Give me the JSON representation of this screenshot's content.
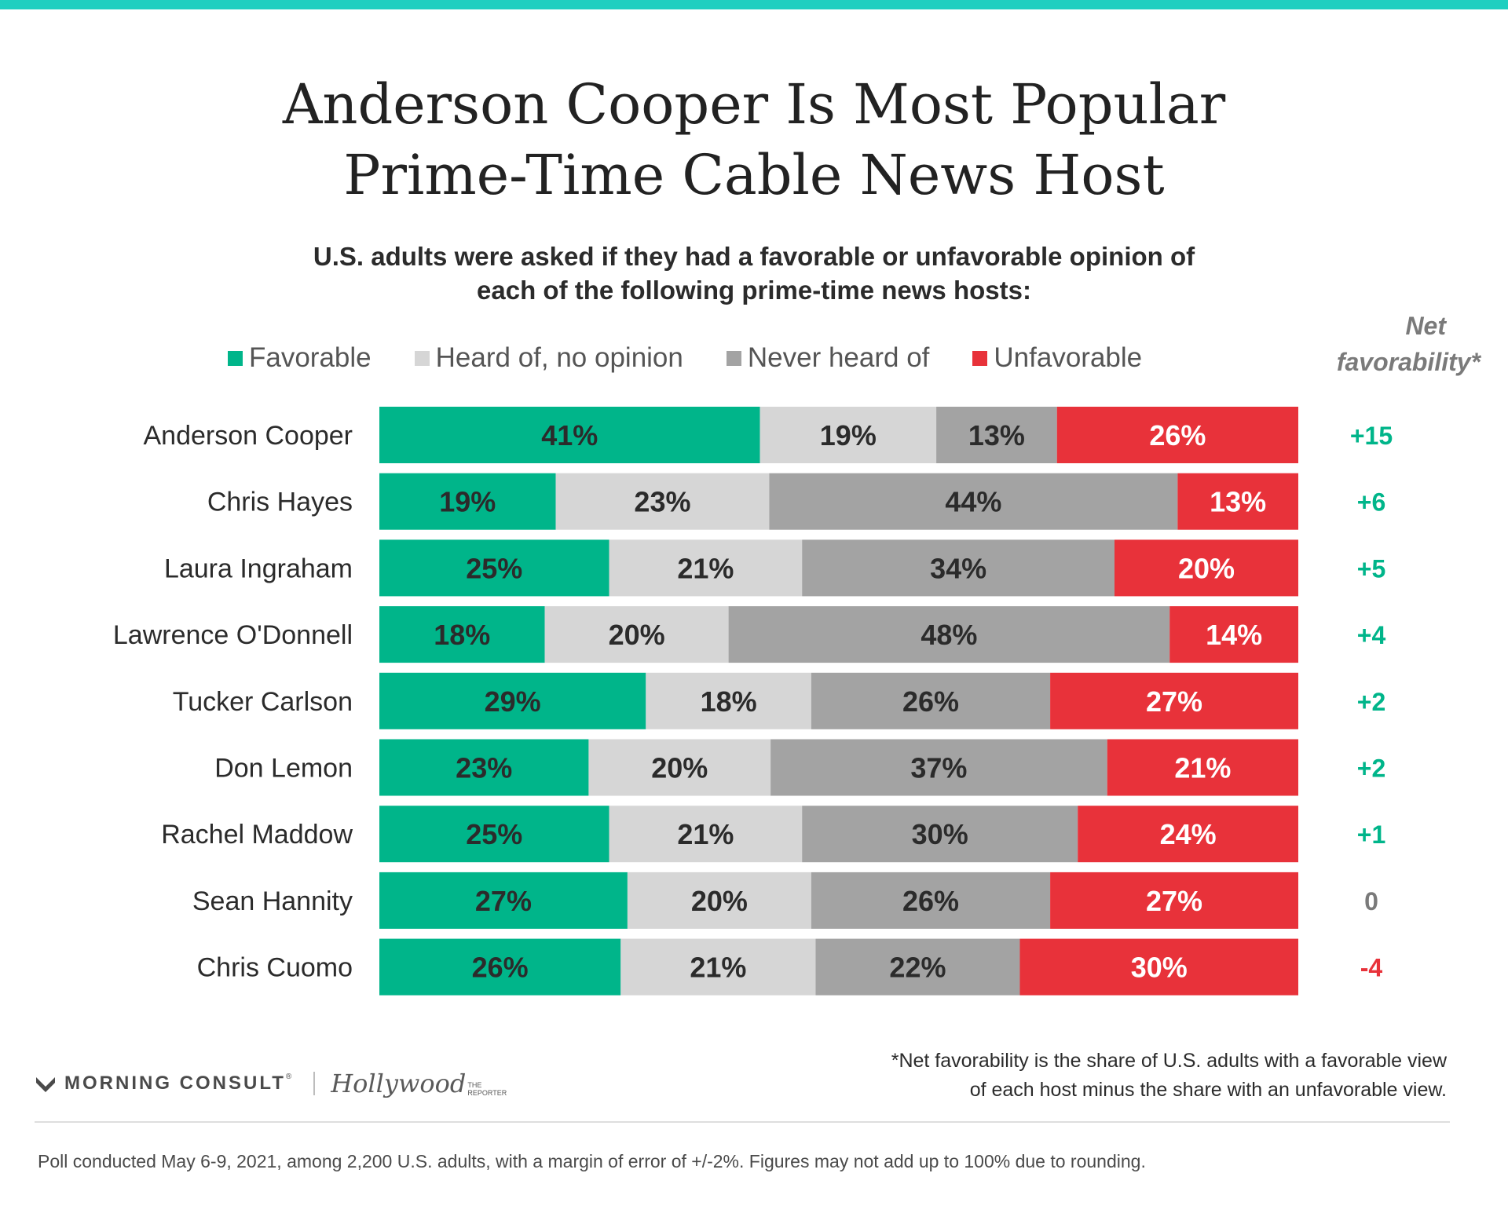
{
  "title_lines": [
    "Anderson Cooper Is Most Popular",
    "Prime-Time Cable News Host"
  ],
  "subtitle_lines": [
    "U.S. adults were asked if they had a favorable or unfavorable opinion of",
    "each of the following prime-time news hosts:"
  ],
  "net_header": [
    "Net",
    "favorability*"
  ],
  "colors": {
    "favorable": "#00b58a",
    "no_opinion": "#d6d6d6",
    "never_heard": "#a3a3a3",
    "unfavorable": "#e8323a",
    "net_positive": "#00b58a",
    "net_neutral": "#7a7a7a",
    "net_negative": "#e8323a"
  },
  "chart_data": {
    "type": "bar",
    "orientation": "horizontal",
    "stacked": true,
    "categories": [
      "Anderson Cooper",
      "Chris Hayes",
      "Laura Ingraham",
      "Lawrence O'Donnell",
      "Tucker Carlson",
      "Don Lemon",
      "Rachel Maddow",
      "Sean Hannity",
      "Chris Cuomo"
    ],
    "series": [
      {
        "name": "Favorable",
        "color": "#00b58a",
        "values": [
          41,
          19,
          25,
          18,
          29,
          23,
          25,
          27,
          26
        ]
      },
      {
        "name": "Heard of, no opinion",
        "color": "#d6d6d6",
        "values": [
          19,
          23,
          21,
          20,
          18,
          20,
          21,
          20,
          21
        ]
      },
      {
        "name": "Never heard of",
        "color": "#a3a3a3",
        "values": [
          13,
          44,
          34,
          48,
          26,
          37,
          30,
          26,
          22
        ]
      },
      {
        "name": "Unfavorable",
        "color": "#e8323a",
        "values": [
          26,
          13,
          20,
          14,
          27,
          21,
          24,
          27,
          30
        ]
      }
    ],
    "value_suffix": "%",
    "net_favorability": [
      "+15",
      "+6",
      "+5",
      "+4",
      "+2",
      "+2",
      "+1",
      "0",
      "-4"
    ],
    "legend_position": "top",
    "grid": false
  },
  "footnote_lines": [
    "*Net favorability is the share of U.S. adults with a favorable view",
    "of each host minus the share with an unfavorable view."
  ],
  "brand": {
    "morning_consult": "MORNING CONSULT",
    "trademark": "®",
    "thr_main": "Hollywood",
    "thr_the": "THE",
    "thr_reporter": "REPORTER"
  },
  "source_note": "Poll conducted May 6-9, 2021, among 2,200 U.S. adults, with a margin of error of +/-2%. Figures may not add up to 100% due to rounding."
}
